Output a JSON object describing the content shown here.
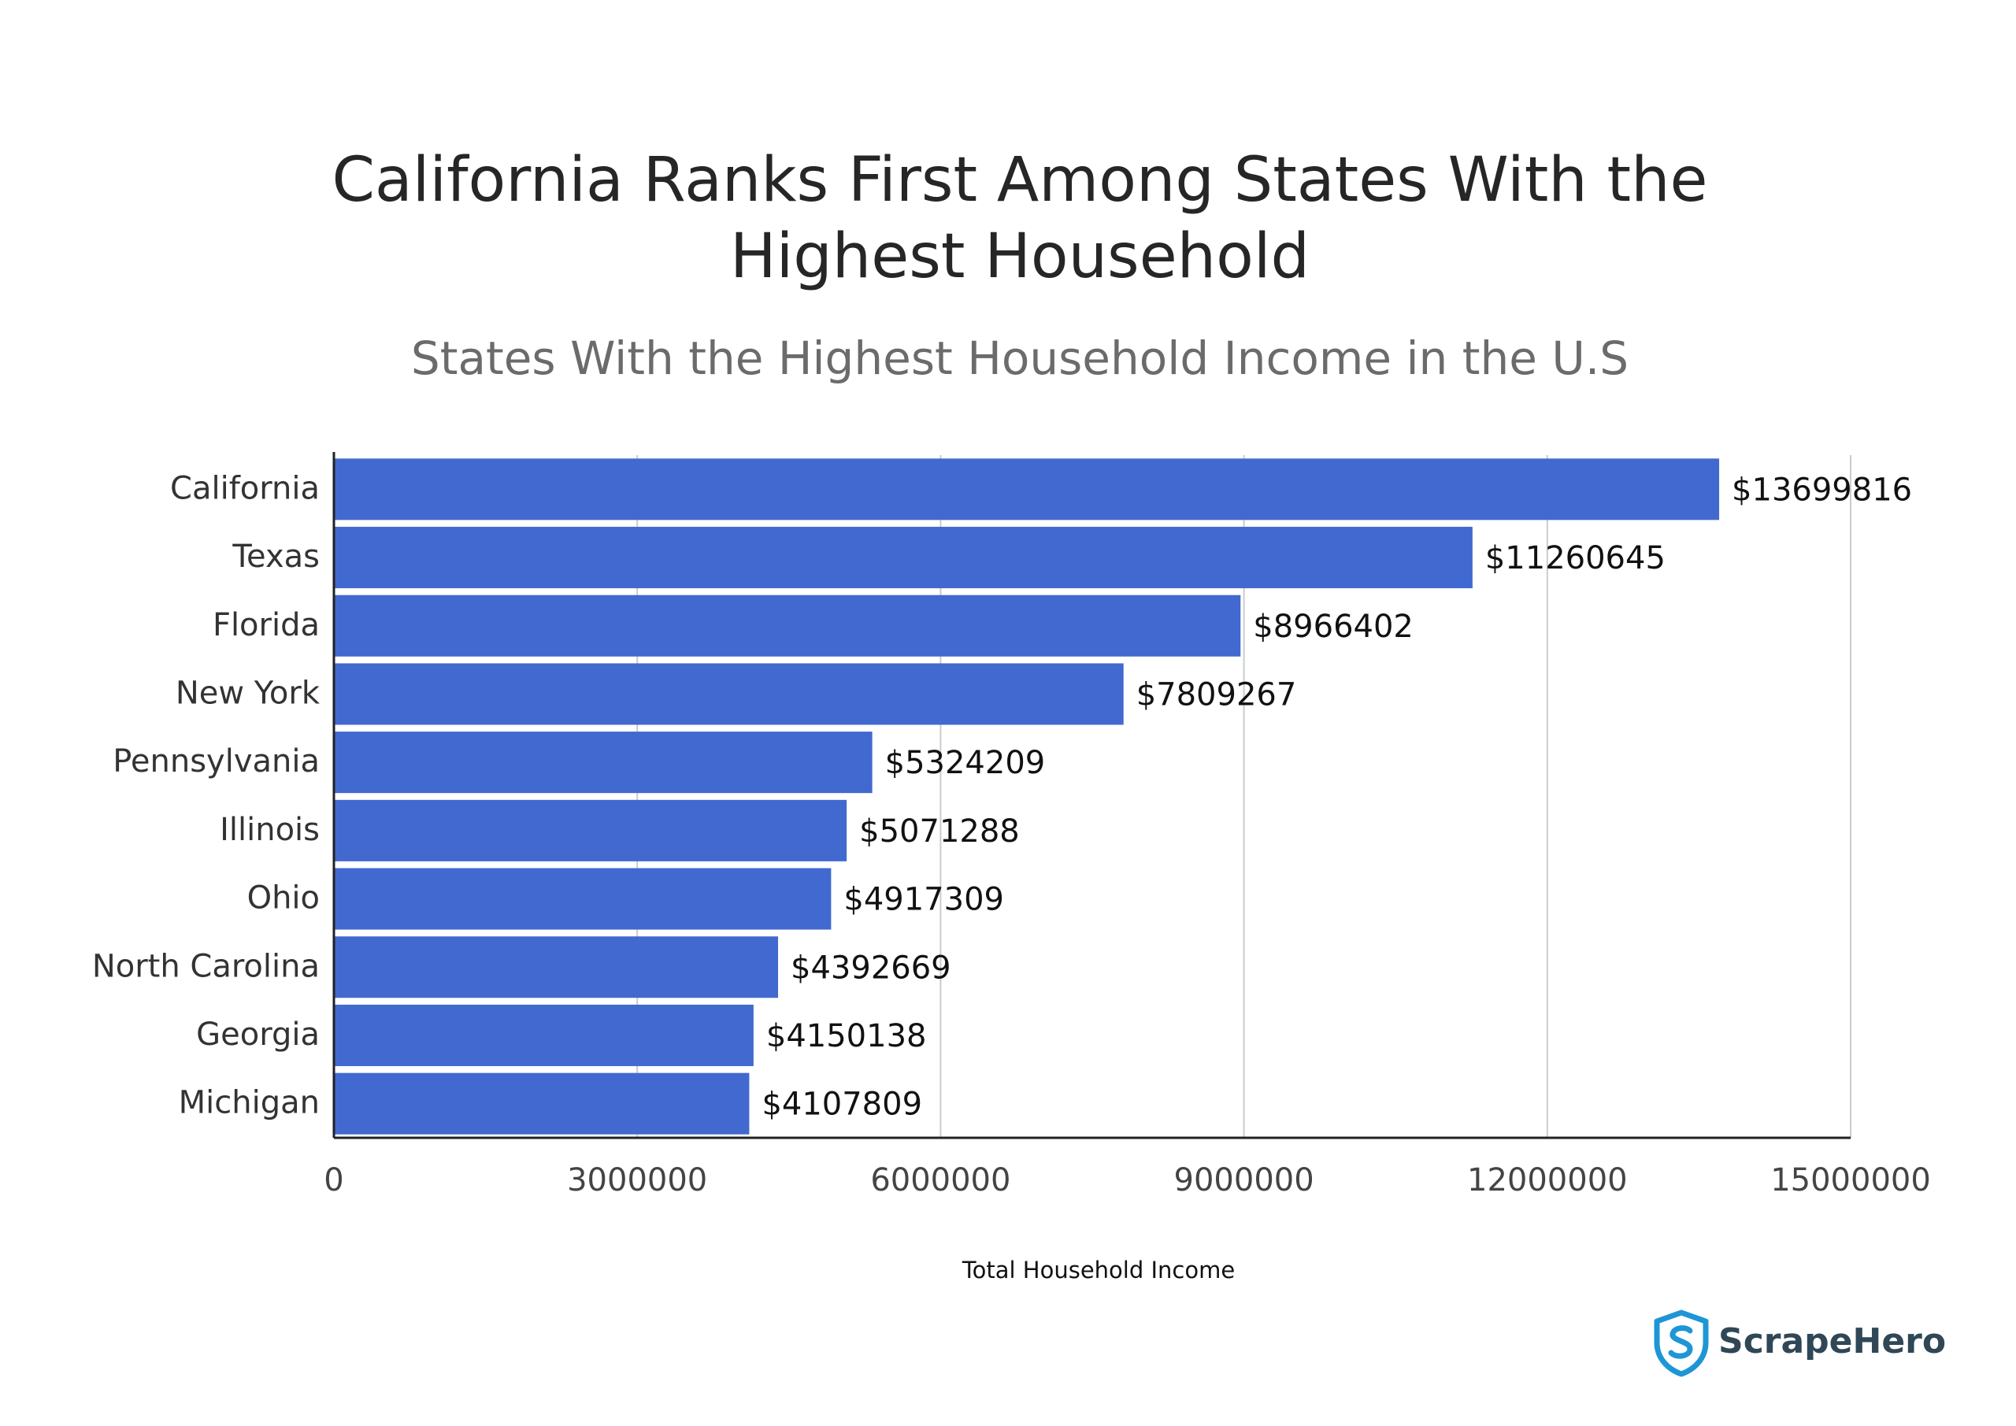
{
  "chart_data": {
    "type": "bar",
    "orientation": "horizontal",
    "title": "California Ranks First Among States With the Highest Household",
    "subtitle": "States With the Highest Household Income in the U.S",
    "xlabel": "Total Household Income",
    "ylabel": "",
    "categories": [
      "California",
      "Texas",
      "Florida",
      "New York",
      "Pennsylvania",
      "Illinois",
      "Ohio",
      "North Carolina",
      "Georgia",
      "Michigan"
    ],
    "values": [
      13699816,
      11260645,
      8966402,
      7809267,
      5324209,
      5071288,
      4917309,
      4392669,
      4150138,
      4107809
    ],
    "value_labels": [
      "$13699816",
      "$11260645",
      "$8966402",
      "$7809267",
      "$5324209",
      "$5071288",
      "$4917309",
      "$4392669",
      "$4150138",
      "$4107809"
    ],
    "xlim": [
      0,
      15000000
    ],
    "xticks": [
      0,
      3000000,
      6000000,
      9000000,
      12000000,
      15000000
    ],
    "xtick_labels": [
      "0",
      "3000000",
      "6000000",
      "9000000",
      "12000000",
      "15000000"
    ],
    "grid": true,
    "legend": "none",
    "bar_color": "#4169cf",
    "grid_color": "#cccccc",
    "axis_color": "#222222"
  },
  "brand": {
    "name": "ScrapeHero",
    "icon": "shield-s-logo-icon",
    "color": "#1e96d6"
  }
}
